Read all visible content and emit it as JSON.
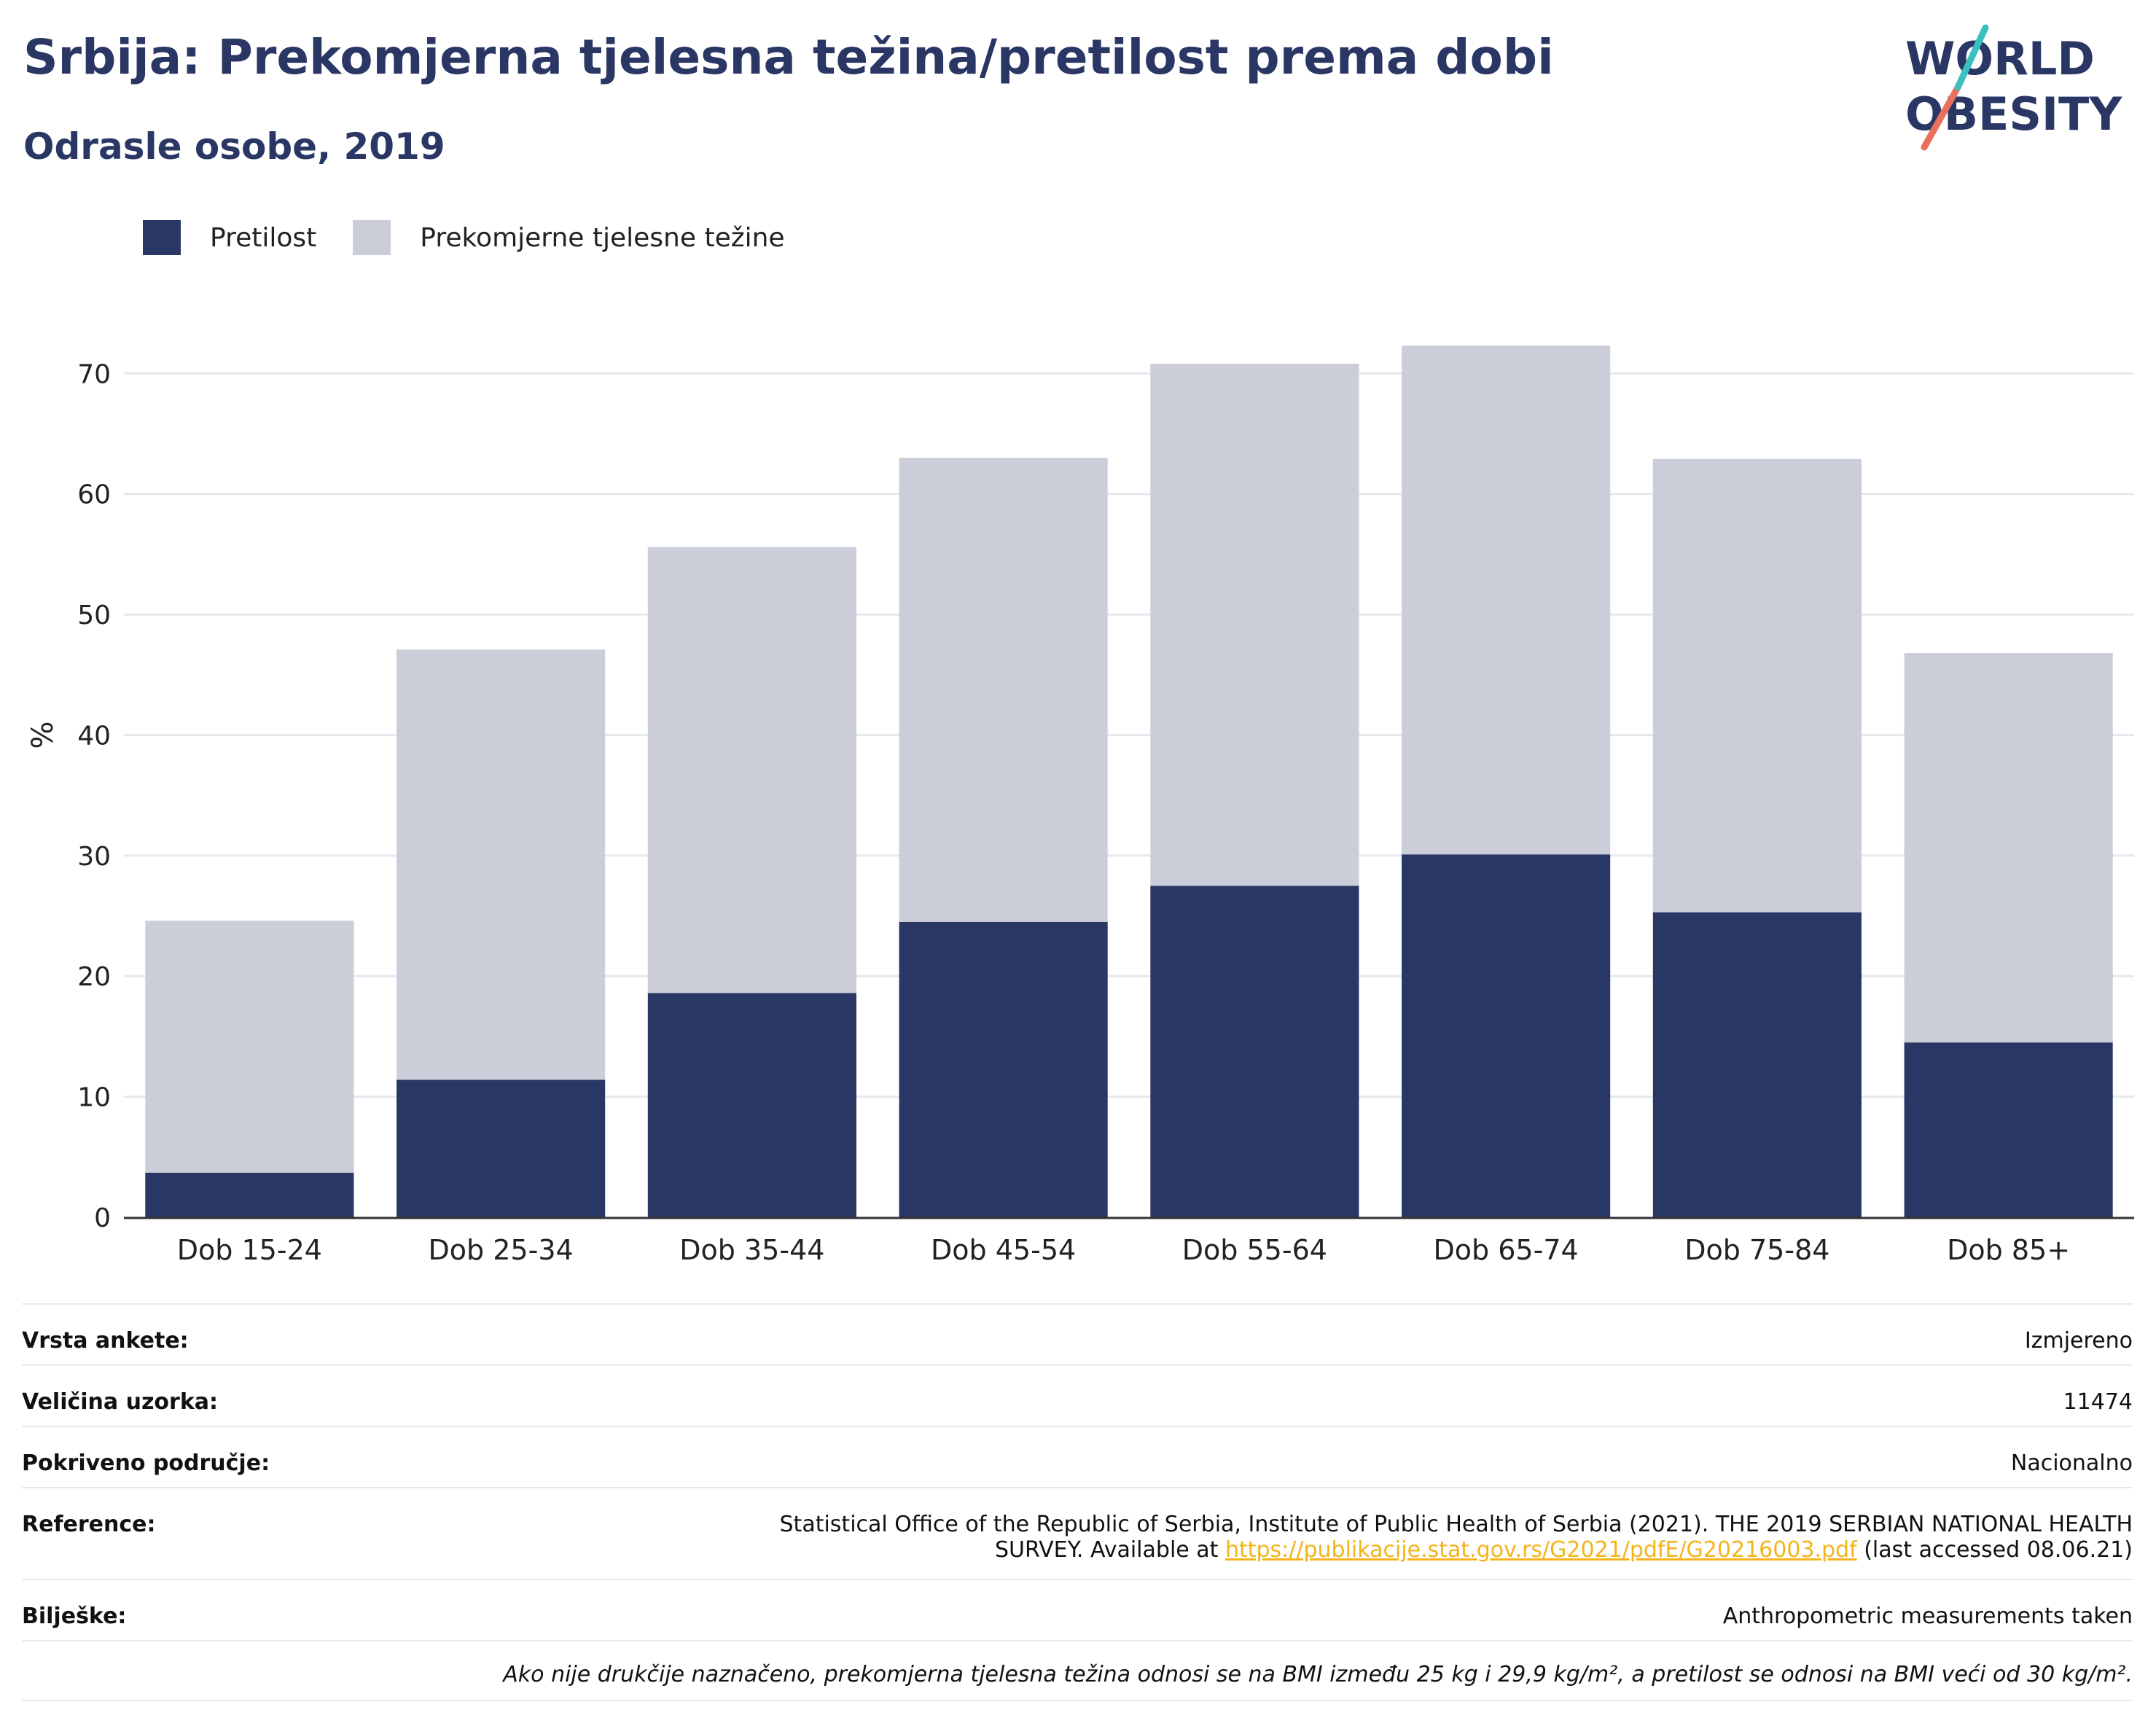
{
  "header": {
    "title": "Srbija: Prekomjerna tjelesna težina/pretilost prema dobi",
    "subtitle": "Odrasle osobe, 2019"
  },
  "logo": {
    "line1": "WORLD",
    "line2": "OBESITY",
    "accent_teal": "#3bbfbf",
    "accent_coral": "#e8705d",
    "text_color": "#2a3765"
  },
  "legend": [
    {
      "label": "Pretilost",
      "color": "#2a3765"
    },
    {
      "label": "Prekomjerne tjelesne težine",
      "color": "#cbcdd9"
    }
  ],
  "chart_data": {
    "type": "bar",
    "stacked": true,
    "categories": [
      "Dob 15-24",
      "Dob 25-34",
      "Dob 35-44",
      "Dob 45-54",
      "Dob 55-64",
      "Dob 65-74",
      "Dob 75-84",
      "Dob 85+"
    ],
    "series": [
      {
        "name": "Pretilost",
        "color": "#2a3765",
        "values": [
          3.7,
          11.4,
          18.6,
          24.5,
          27.5,
          30.1,
          25.3,
          14.5
        ]
      },
      {
        "name": "Prekomjerne tjelesne težine",
        "color": "#cbcdd9",
        "values": [
          20.9,
          35.7,
          37.0,
          38.5,
          43.3,
          42.2,
          37.6,
          32.3
        ]
      }
    ],
    "ylabel": "%",
    "ylim": [
      0,
      78
    ],
    "yticks": [
      0,
      10,
      20,
      30,
      40,
      50,
      60,
      70
    ],
    "grid": true,
    "legend_position": "top-left"
  },
  "meta": {
    "survey_type": {
      "label": "Vrsta ankete:",
      "value": "Izmjereno"
    },
    "sample_size": {
      "label": "Veličina uzorka:",
      "value": "11474"
    },
    "coverage": {
      "label": "Pokriveno područje:",
      "value": "Nacionalno"
    },
    "reference": {
      "label": "Reference:",
      "line1": "Statistical Office of the Republic of Serbia, Institute of Public Health of Serbia (2021). THE 2019 SERBIAN NATIONAL HEALTH",
      "line2_pre": "SURVEY. Available at ",
      "link": "https://publikacije.stat.gov.rs/G2021/pdfE/G20216003.pdf",
      "line2_post": " (last accessed 08.06.21)"
    },
    "notes": {
      "label": "Bilješke:",
      "value": "Anthropometric measurements taken"
    },
    "footnote": "Ako nije drukčije naznačeno, prekomjerna tjelesna težina odnosi se na BMI između 25 kg i 29,9 kg/m², a pretilost se odnosi na BMI veći od 30 kg/m²."
  }
}
